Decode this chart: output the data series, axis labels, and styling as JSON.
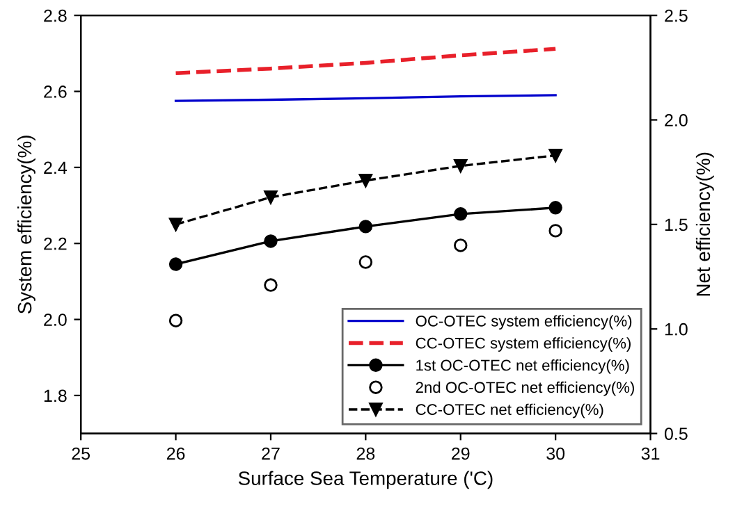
{
  "chart_data": {
    "type": "line",
    "xlabel": "Surface Sea Temperature ('C)",
    "ylabel": "System efficiency(%)",
    "y2label": "Net efficiency(%)",
    "x": [
      26,
      27,
      28,
      29,
      30
    ],
    "xlim": [
      25,
      31
    ],
    "xticks": [
      25,
      26,
      27,
      28,
      29,
      30,
      31
    ],
    "ylim": [
      1.7,
      2.8
    ],
    "yticks": [
      1.8,
      {
        "value": 2,
        "label": "2.0"
      },
      2.2,
      2.4,
      2.6,
      2.8
    ],
    "y2lim": [
      0.5,
      2.5
    ],
    "y2ticks": [
      0.5,
      {
        "value": 1,
        "label": "1.0"
      },
      1.5,
      {
        "value": 2,
        "label": "2.0"
      },
      2.5
    ],
    "grid": false,
    "legend": "bottom right",
    "series": [
      {
        "name": "OC-OTEC system efficiency(%)",
        "color": "#0000cc",
        "values": [
          2.575,
          2.578,
          2.582,
          2.587,
          2.59
        ],
        "marker": "none",
        "line_style": "solid"
      },
      {
        "name": "CC-OTEC system efficiency(%)",
        "color": "#e8202a",
        "values": [
          2.648,
          2.66,
          2.675,
          2.695,
          2.712
        ],
        "marker": "none",
        "line_style": "dashed"
      },
      {
        "name": "1st OC-OTEC net efficiency(%)",
        "color": "#000000",
        "values": [
          1.31,
          1.42,
          1.49,
          1.55,
          1.58
        ],
        "marker": "circle",
        "line_style": "solid",
        "axis": "y2"
      },
      {
        "name": "2nd OC-OTEC net efficiency(%)",
        "color": "#000000",
        "type": "scatter",
        "values": [
          1.04,
          1.21,
          1.32,
          1.4,
          1.47
        ],
        "marker": "circle",
        "axis": "y2"
      },
      {
        "name": "CC-OTEC net efficiency(%)",
        "color": "#000000",
        "values": [
          1.5,
          1.63,
          1.71,
          1.78,
          1.83
        ],
        "marker": "triangle",
        "line_style": "dashed",
        "axis": "y2"
      }
    ]
  }
}
